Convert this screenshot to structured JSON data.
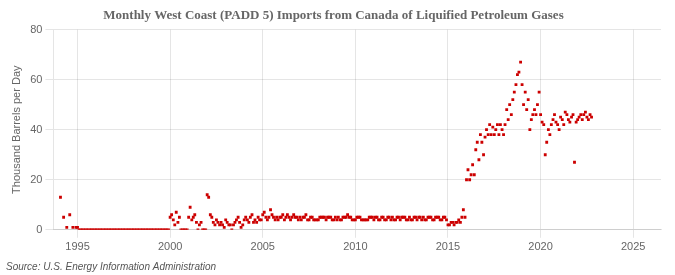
{
  "chart_data": {
    "type": "scatter",
    "title": "Monthly West Coast (PADD 5) Imports from Canada of Liquified Petroleum Gases",
    "ylabel": "Thousand Barrels per Day",
    "source": "Source: U.S. Energy Information Administration",
    "color": "#cc0000",
    "marker": "square",
    "grid": true,
    "xlim": [
      1993.7,
      2026.5
    ],
    "xticks": [
      1995,
      2000,
      2005,
      2010,
      2015,
      2020,
      2025
    ],
    "ylim": [
      0,
      80
    ],
    "yticks": [
      0,
      20,
      40,
      60,
      80
    ],
    "x": [
      1994.08,
      1994.25,
      1994.42,
      1994.58,
      1994.75,
      1994.92,
      1995.0,
      1995.08,
      1995.17,
      1995.25,
      1995.33,
      1995.42,
      1995.5,
      1995.58,
      1995.67,
      1995.75,
      1995.83,
      1995.92,
      1996.0,
      1996.08,
      1996.17,
      1996.25,
      1996.33,
      1996.42,
      1996.5,
      1996.58,
      1996.67,
      1996.75,
      1996.83,
      1996.92,
      1997.0,
      1997.08,
      1997.17,
      1997.25,
      1997.33,
      1997.42,
      1997.5,
      1997.58,
      1997.67,
      1997.75,
      1997.83,
      1997.92,
      1998.0,
      1998.08,
      1998.17,
      1998.25,
      1998.33,
      1998.42,
      1998.5,
      1998.58,
      1998.67,
      1998.75,
      1998.83,
      1998.92,
      1999.0,
      1999.08,
      1999.17,
      1999.25,
      1999.33,
      1999.42,
      1999.5,
      1999.58,
      1999.67,
      1999.75,
      1999.83,
      1999.92,
      2000.0,
      2000.08,
      2000.17,
      2000.25,
      2000.33,
      2000.42,
      2000.5,
      2000.58,
      2000.67,
      2000.75,
      2000.83,
      2000.92,
      2001.0,
      2001.08,
      2001.17,
      2001.25,
      2001.33,
      2001.42,
      2001.5,
      2001.58,
      2001.67,
      2001.75,
      2001.83,
      2001.92,
      2002.0,
      2002.08,
      2002.17,
      2002.25,
      2002.33,
      2002.42,
      2002.5,
      2002.58,
      2002.67,
      2002.75,
      2002.83,
      2002.92,
      2003.0,
      2003.08,
      2003.17,
      2003.25,
      2003.33,
      2003.42,
      2003.5,
      2003.58,
      2003.67,
      2003.75,
      2003.83,
      2003.92,
      2004.0,
      2004.08,
      2004.17,
      2004.25,
      2004.33,
      2004.42,
      2004.5,
      2004.58,
      2004.67,
      2004.75,
      2004.83,
      2004.92,
      2005.0,
      2005.08,
      2005.17,
      2005.25,
      2005.33,
      2005.42,
      2005.5,
      2005.58,
      2005.67,
      2005.75,
      2005.83,
      2005.92,
      2006.0,
      2006.08,
      2006.17,
      2006.25,
      2006.33,
      2006.42,
      2006.5,
      2006.58,
      2006.67,
      2006.75,
      2006.83,
      2006.92,
      2007.0,
      2007.08,
      2007.17,
      2007.25,
      2007.33,
      2007.42,
      2007.5,
      2007.58,
      2007.67,
      2007.75,
      2007.83,
      2007.92,
      2008.0,
      2008.08,
      2008.17,
      2008.25,
      2008.33,
      2008.42,
      2008.5,
      2008.58,
      2008.67,
      2008.75,
      2008.83,
      2008.92,
      2009.0,
      2009.08,
      2009.17,
      2009.25,
      2009.33,
      2009.42,
      2009.5,
      2009.58,
      2009.67,
      2009.75,
      2009.83,
      2009.92,
      2010.0,
      2010.08,
      2010.17,
      2010.25,
      2010.33,
      2010.42,
      2010.5,
      2010.58,
      2010.67,
      2010.75,
      2010.83,
      2010.92,
      2011.0,
      2011.08,
      2011.17,
      2011.25,
      2011.33,
      2011.42,
      2011.5,
      2011.58,
      2011.67,
      2011.75,
      2011.83,
      2011.92,
      2012.0,
      2012.08,
      2012.17,
      2012.25,
      2012.33,
      2012.42,
      2012.5,
      2012.58,
      2012.67,
      2012.75,
      2012.83,
      2012.92,
      2013.0,
      2013.08,
      2013.17,
      2013.25,
      2013.33,
      2013.42,
      2013.5,
      2013.58,
      2013.67,
      2013.75,
      2013.83,
      2013.92,
      2014.0,
      2014.08,
      2014.17,
      2014.25,
      2014.33,
      2014.42,
      2014.5,
      2014.58,
      2014.67,
      2014.75,
      2014.83,
      2014.92,
      2015.0,
      2015.08,
      2015.17,
      2015.25,
      2015.33,
      2015.42,
      2015.5,
      2015.58,
      2015.67,
      2015.75,
      2015.83,
      2015.92,
      2016.0,
      2016.08,
      2016.17,
      2016.25,
      2016.33,
      2016.42,
      2016.5,
      2016.58,
      2016.67,
      2016.75,
      2016.83,
      2016.92,
      2017.0,
      2017.08,
      2017.17,
      2017.25,
      2017.33,
      2017.42,
      2017.5,
      2017.58,
      2017.67,
      2017.75,
      2017.83,
      2017.92,
      2018.0,
      2018.08,
      2018.17,
      2018.25,
      2018.33,
      2018.42,
      2018.5,
      2018.58,
      2018.67,
      2018.75,
      2018.83,
      2018.92,
      2019.0,
      2019.08,
      2019.17,
      2019.25,
      2019.33,
      2019.42,
      2019.5,
      2019.58,
      2019.67,
      2019.75,
      2019.83,
      2019.92,
      2020.0,
      2020.08,
      2020.17,
      2020.25,
      2020.33,
      2020.42,
      2020.5,
      2020.58,
      2020.67,
      2020.75,
      2020.83,
      2020.92,
      2021.0,
      2021.08,
      2021.17,
      2021.25,
      2021.33,
      2021.42,
      2021.5,
      2021.58,
      2021.67,
      2021.75,
      2021.83,
      2021.92,
      2022.0,
      2022.08,
      2022.17,
      2022.25,
      2022.33,
      2022.42,
      2022.5,
      2022.58,
      2022.67,
      2022.75
    ],
    "values": [
      13,
      5,
      1,
      6,
      1,
      1,
      1,
      0,
      0,
      0,
      0,
      0,
      0,
      0,
      0,
      0,
      0,
      0,
      0,
      0,
      0,
      0,
      0,
      0,
      0,
      0,
      0,
      0,
      0,
      0,
      0,
      0,
      0,
      0,
      0,
      0,
      0,
      0,
      0,
      0,
      0,
      0,
      0,
      0,
      0,
      0,
      0,
      0,
      0,
      0,
      0,
      0,
      0,
      0,
      0,
      0,
      0,
      0,
      0,
      0,
      0,
      0,
      0,
      0,
      0,
      0,
      5,
      6,
      4,
      2,
      7,
      3,
      5,
      0,
      0,
      0,
      0,
      0,
      5,
      9,
      4,
      5,
      6,
      3,
      0,
      2,
      3,
      0,
      0,
      0,
      14,
      13,
      6,
      5,
      3,
      2,
      4,
      3,
      2,
      3,
      2,
      1,
      4,
      3,
      2,
      2,
      0,
      2,
      3,
      4,
      5,
      3,
      1,
      2,
      4,
      5,
      4,
      3,
      5,
      6,
      3,
      4,
      3,
      5,
      4,
      4,
      6,
      7,
      5,
      4,
      5,
      8,
      6,
      5,
      4,
      5,
      4,
      5,
      5,
      6,
      4,
      5,
      6,
      5,
      4,
      5,
      6,
      5,
      5,
      4,
      5,
      4,
      5,
      5,
      6,
      4,
      4,
      5,
      5,
      4,
      4,
      4,
      4,
      5,
      5,
      5,
      5,
      4,
      5,
      5,
      5,
      4,
      4,
      5,
      4,
      5,
      4,
      4,
      5,
      5,
      5,
      6,
      5,
      5,
      4,
      4,
      4,
      5,
      5,
      5,
      4,
      4,
      4,
      4,
      4,
      5,
      5,
      5,
      4,
      5,
      5,
      4,
      4,
      5,
      5,
      4,
      4,
      5,
      5,
      4,
      5,
      4,
      4,
      5,
      5,
      4,
      5,
      5,
      5,
      4,
      4,
      5,
      4,
      4,
      5,
      5,
      4,
      5,
      5,
      4,
      5,
      4,
      4,
      5,
      5,
      5,
      4,
      4,
      5,
      5,
      5,
      4,
      4,
      5,
      5,
      4,
      2,
      2,
      3,
      3,
      2,
      3,
      3,
      4,
      3,
      5,
      8,
      5,
      20,
      24,
      20,
      22,
      26,
      22,
      32,
      35,
      28,
      38,
      35,
      30,
      37,
      40,
      38,
      42,
      38,
      41,
      38,
      40,
      42,
      38,
      42,
      40,
      38,
      42,
      48,
      44,
      50,
      46,
      52,
      55,
      58,
      62,
      63,
      67,
      58,
      50,
      55,
      48,
      52,
      40,
      44,
      46,
      48,
      46,
      50,
      55,
      46,
      43,
      42,
      30,
      35,
      40,
      38,
      42,
      44,
      46,
      43,
      42,
      40,
      45,
      44,
      42,
      47,
      46,
      44,
      43,
      45,
      46,
      27,
      43,
      44,
      45,
      46,
      44,
      46,
      47,
      45,
      44,
      46,
      45
    ]
  }
}
